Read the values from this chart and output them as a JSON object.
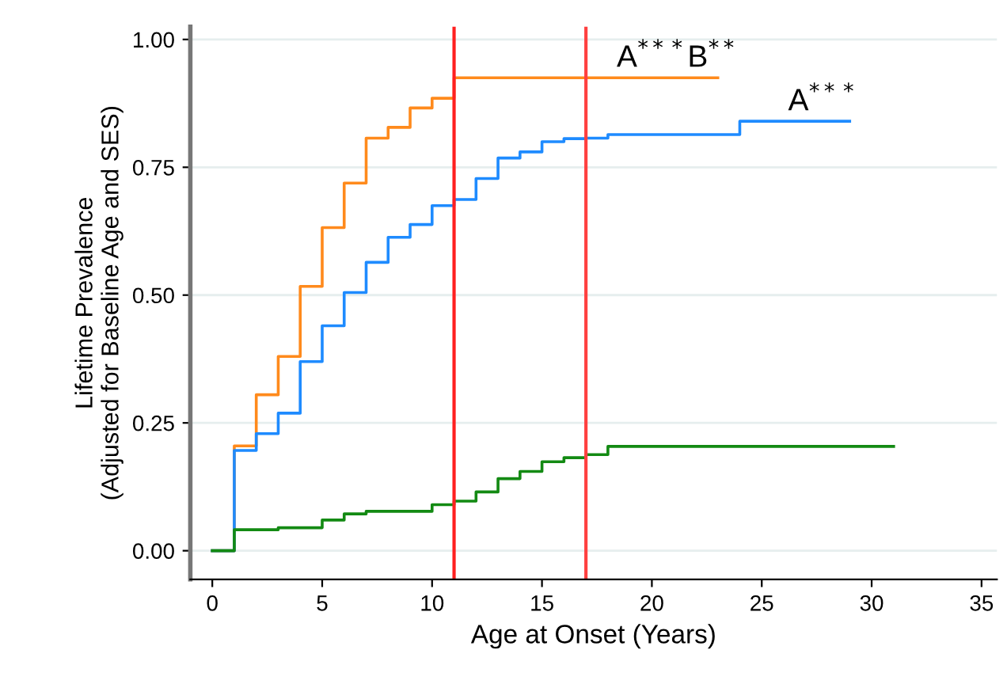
{
  "chart_data": {
    "type": "step",
    "xlabel": "Age at Onset (Years)",
    "ylabel": "Lifetime Prevalence\n(Adjusted for Baseline Age and SES)",
    "series": [
      {
        "color": "#ff8a1c",
        "x": [
          0,
          1,
          2,
          3,
          4,
          5,
          6,
          7,
          8,
          9,
          10,
          11,
          23
        ],
        "values": [
          0,
          0.205,
          0.305,
          0.38,
          0.517,
          0.632,
          0.719,
          0.807,
          0.828,
          0.866,
          0.885,
          0.925,
          0.925
        ]
      },
      {
        "color": "#1e8bff",
        "x": [
          0,
          1,
          2,
          3,
          4,
          5,
          6,
          7,
          8,
          9,
          10,
          11,
          12,
          13,
          14,
          15,
          16,
          17,
          18,
          24,
          29
        ],
        "values": [
          0,
          0.196,
          0.229,
          0.269,
          0.37,
          0.44,
          0.505,
          0.564,
          0.613,
          0.638,
          0.675,
          0.687,
          0.728,
          0.768,
          0.78,
          0.8,
          0.806,
          0.807,
          0.814,
          0.84,
          0.84
        ]
      },
      {
        "color": "#138a13",
        "x": [
          0,
          1,
          3,
          5,
          6,
          7,
          10,
          11,
          12,
          13,
          14,
          15,
          16,
          17,
          18,
          31
        ],
        "values": [
          0,
          0.041,
          0.045,
          0.06,
          0.072,
          0.077,
          0.09,
          0.097,
          0.115,
          0.141,
          0.155,
          0.174,
          0.182,
          0.188,
          0.204,
          0.204
        ]
      }
    ],
    "ref_lines": [
      {
        "axis": "x",
        "value": 11,
        "label": null,
        "color": "#ff2020"
      },
      {
        "axis": "x",
        "value": 17,
        "label": null,
        "color": "#ff4040"
      }
    ],
    "annotations": [
      {
        "text": "A$^{***}$B$^{**}$",
        "x": 18.4,
        "y": 0.925
      },
      {
        "text": "A$^{***}$",
        "x": 26.2,
        "y": 0.84
      }
    ],
    "xlim": [
      -1,
      35.7
    ],
    "ylim": [
      -0.056,
      1.025
    ],
    "xticks": [
      0,
      5,
      10,
      15,
      20,
      25,
      30,
      35
    ],
    "yticks": [
      {
        "value": 0,
        "label": "0.00"
      },
      {
        "value": 0.25,
        "label": "0.25"
      },
      {
        "value": 0.5,
        "label": "0.50"
      },
      {
        "value": 0.75,
        "label": "0.75"
      },
      {
        "value": 1,
        "label": "1.00"
      }
    ],
    "grid": "y",
    "legend": false
  }
}
